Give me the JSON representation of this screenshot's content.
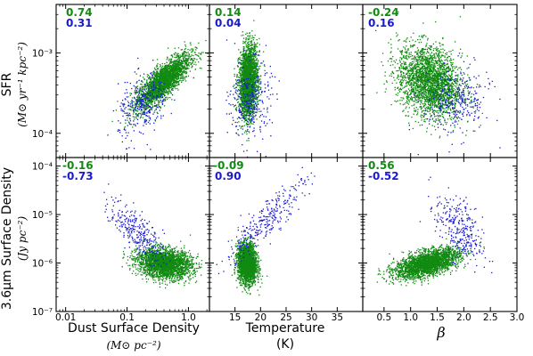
{
  "colors": {
    "green": "#118a11",
    "blue": "#1a1acc",
    "axis": "#000000"
  },
  "chart_data": {
    "type": "scatter",
    "grid": false,
    "legend": "none",
    "columns": [
      {
        "key": "dust",
        "xlabel": "Dust Surface Density",
        "xunit": "(M⊙ pc⁻²)",
        "scale": "log",
        "xlim": [
          0.007,
          2.2
        ],
        "ticks": [
          {
            "v": 0.01,
            "label": "0.01"
          },
          {
            "v": 0.1,
            "label": "0.1"
          },
          {
            "v": 1.0,
            "label": "1.0"
          }
        ]
      },
      {
        "key": "temp",
        "xlabel": "Temperature",
        "xunit": "(K)",
        "scale": "linear",
        "xlim": [
          10,
          40
        ],
        "ticks": [
          {
            "v": 15,
            "label": "15"
          },
          {
            "v": 20,
            "label": "20"
          },
          {
            "v": 25,
            "label": "25"
          },
          {
            "v": 30,
            "label": "30"
          },
          {
            "v": 35,
            "label": "35"
          }
        ]
      },
      {
        "key": "beta",
        "xlabel": "β",
        "xunit": "",
        "scale": "linear",
        "xlim": [
          0.1,
          3.0
        ],
        "ticks": [
          {
            "v": 0.5,
            "label": "0.5"
          },
          {
            "v": 1.0,
            "label": "1.0"
          },
          {
            "v": 1.5,
            "label": "1.5"
          },
          {
            "v": 2.0,
            "label": "2.0"
          },
          {
            "v": 2.5,
            "label": "2.5"
          },
          {
            "v": 3.0,
            "label": "3.0"
          }
        ]
      }
    ],
    "rows": [
      {
        "key": "sfr",
        "ylabel": "SFR",
        "yunit": "(M⊙ yr⁻¹ kpc⁻²)",
        "scale": "log",
        "ylim": [
          5e-05,
          0.004
        ],
        "ticks": [
          {
            "v": 0.0001,
            "label": "10⁻⁴"
          },
          {
            "v": 0.001,
            "label": "10⁻³"
          }
        ]
      },
      {
        "key": "ir",
        "ylabel": "3.6μm Surface Density",
        "yunit": "(Jy pc⁻²)",
        "scale": "log",
        "ylim": [
          1e-07,
          0.00015
        ],
        "ticks": [
          {
            "v": 1e-07,
            "label": "10⁻⁷"
          },
          {
            "v": 1e-06,
            "label": "10⁻⁶"
          },
          {
            "v": 1e-05,
            "label": "10⁻⁵"
          },
          {
            "v": 0.0001,
            "label": "10⁻⁴"
          }
        ]
      }
    ],
    "panels": [
      {
        "row": 0,
        "col": 0,
        "corr_green": "0.74",
        "corr_blue": "0.31",
        "green": {
          "n": 2600,
          "cx": -0.42,
          "cy": -3.35,
          "sx": 0.22,
          "sy": 0.17,
          "rho": 0.8
        },
        "blue": {
          "n": 300,
          "cx": -0.75,
          "cy": -3.65,
          "sx": 0.2,
          "sy": 0.2,
          "rho": 0.35
        }
      },
      {
        "row": 0,
        "col": 1,
        "corr_green": "0.14",
        "corr_blue": "0.04",
        "green": {
          "n": 2600,
          "cx": 17.5,
          "cy": -3.35,
          "sx": 0.9,
          "sy": 0.22,
          "rho": 0.15
        },
        "blue": {
          "n": 300,
          "cx": 18.0,
          "cy": -3.6,
          "sx": 2.0,
          "sy": 0.25,
          "rho": 0.05
        }
      },
      {
        "row": 0,
        "col": 2,
        "corr_green": "-0.24",
        "corr_blue": "0.16",
        "green": {
          "n": 2600,
          "cx": 1.35,
          "cy": -3.35,
          "sx": 0.3,
          "sy": 0.22,
          "rho": -0.25
        },
        "blue": {
          "n": 300,
          "cx": 1.85,
          "cy": -3.6,
          "sx": 0.32,
          "sy": 0.22,
          "rho": 0.15
        }
      },
      {
        "row": 1,
        "col": 0,
        "corr_green": "-0.16",
        "corr_blue": "-0.73",
        "green": {
          "n": 2600,
          "cx": -0.4,
          "cy": -6.0,
          "sx": 0.22,
          "sy": 0.15,
          "rho": -0.16
        },
        "blue": {
          "n": 300,
          "cx": -0.85,
          "cy": -5.35,
          "sx": 0.22,
          "sy": 0.32,
          "rho": -0.75
        }
      },
      {
        "row": 1,
        "col": 1,
        "corr_green": "-0.09",
        "corr_blue": "0.90",
        "green": {
          "n": 2600,
          "cx": 17.3,
          "cy": -6.0,
          "sx": 0.9,
          "sy": 0.2,
          "rho": -0.09
        },
        "blue": {
          "n": 300,
          "cx": 21.0,
          "cy": -5.1,
          "sx": 4.0,
          "sy": 0.45,
          "rho": 0.9
        }
      },
      {
        "row": 1,
        "col": 2,
        "corr_green": "0.56",
        "corr_blue": "-0.52",
        "green": {
          "n": 2600,
          "cx": 1.3,
          "cy": -6.0,
          "sx": 0.3,
          "sy": 0.15,
          "rho": 0.56
        },
        "blue": {
          "n": 300,
          "cx": 1.9,
          "cy": -5.3,
          "sx": 0.22,
          "sy": 0.38,
          "rho": -0.52
        }
      }
    ]
  }
}
